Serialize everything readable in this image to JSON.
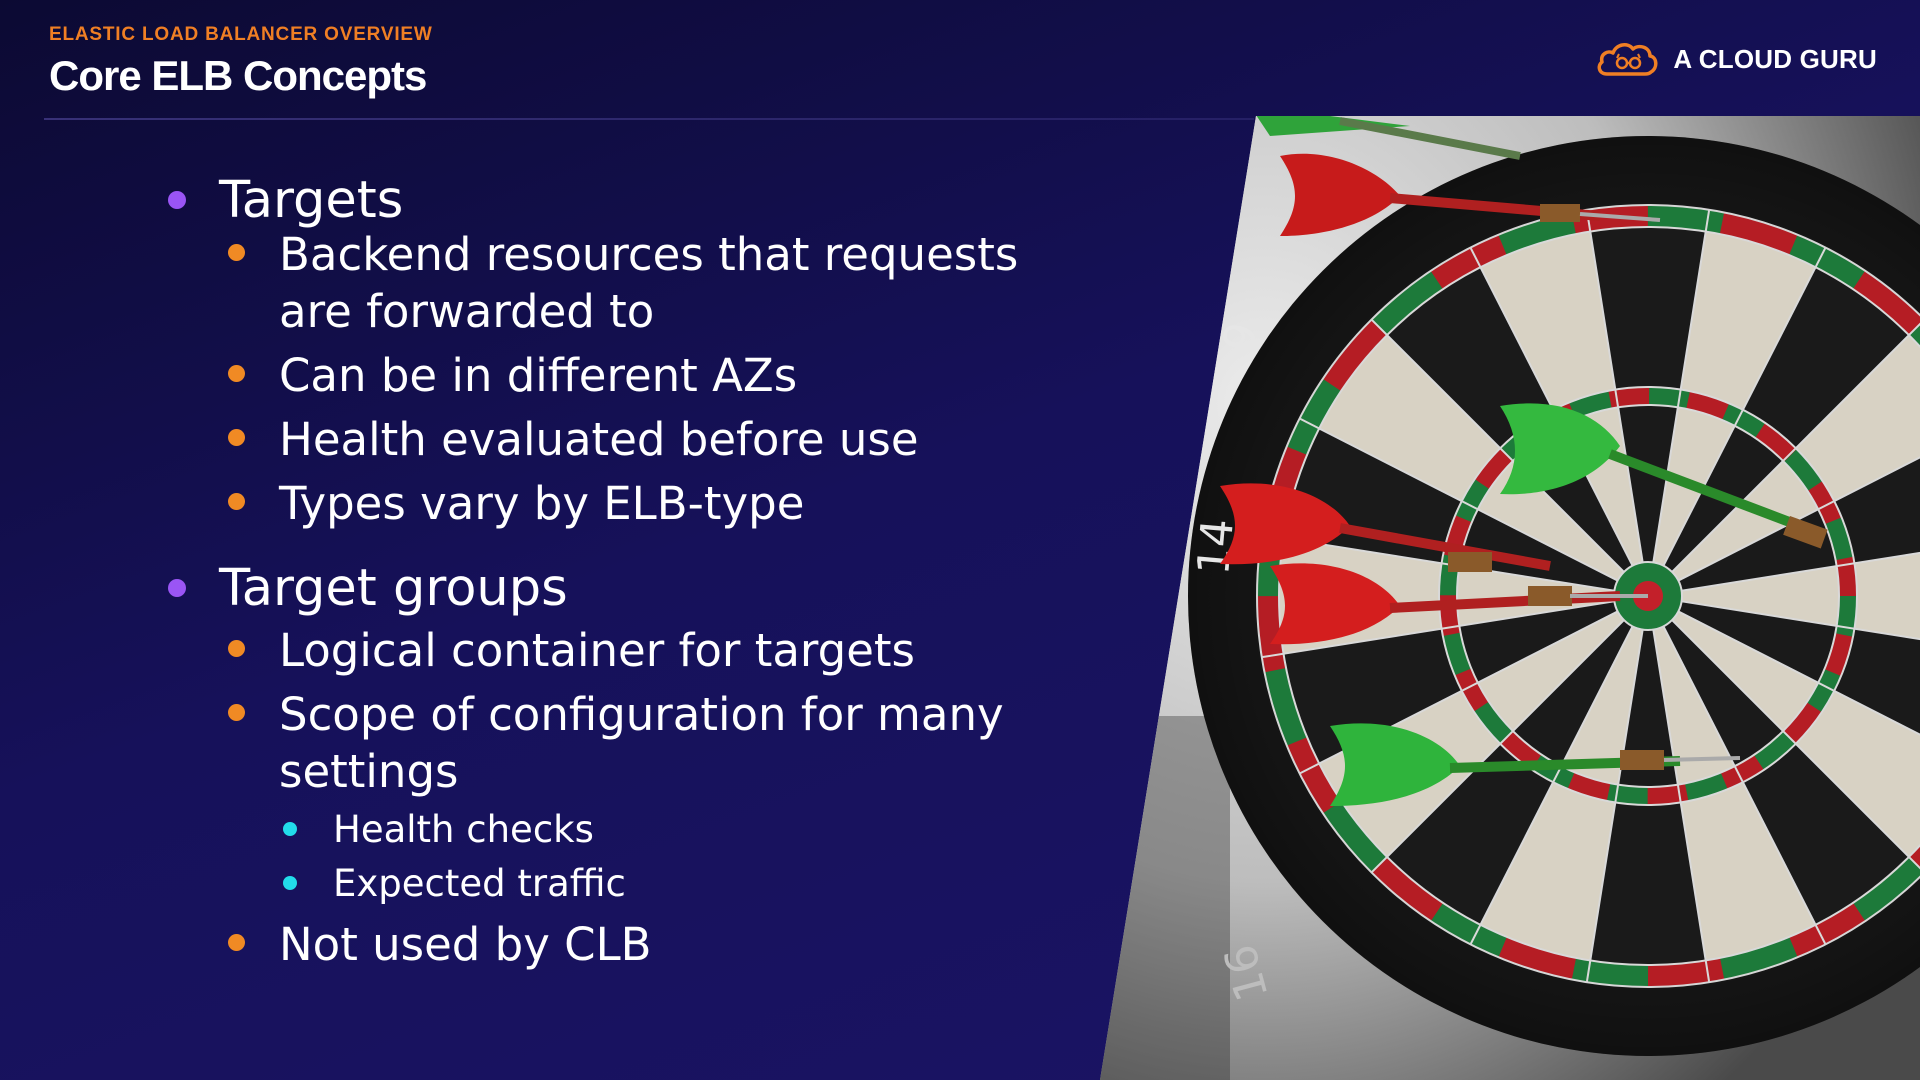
{
  "header": {
    "kicker": "ELASTIC LOAD BALANCER OVERVIEW",
    "title": "Core ELB Concepts"
  },
  "brand": {
    "name": "A CLOUD GURU",
    "logo_icon": "cloud-guru-logo-icon",
    "color": "#f07f24"
  },
  "colors": {
    "kicker": "#f07f24",
    "bullet_level1": "#9a55f5",
    "bullet_level2": "#f08a24",
    "bullet_level3": "#22dcea"
  },
  "bullets": {
    "targets": {
      "label": "Targets",
      "items": [
        {
          "line1": "Backend resources that requests",
          "line2": "are forwarded to"
        },
        {
          "line1": "Can be in different AZs"
        },
        {
          "line1": "Health evaluated before use"
        },
        {
          "line1": "Types vary by ELB-type"
        }
      ]
    },
    "target_groups": {
      "label": "Target groups",
      "items": [
        {
          "line1": "Logical container for targets"
        },
        {
          "line1": "Scope of configuration for many",
          "line2": "settings",
          "sub_items": [
            "Health checks",
            "Expected traffic"
          ]
        },
        {
          "line1": "Not used by CLB"
        }
      ]
    }
  },
  "image": {
    "subject": "dartboard-with-darts-photo"
  }
}
